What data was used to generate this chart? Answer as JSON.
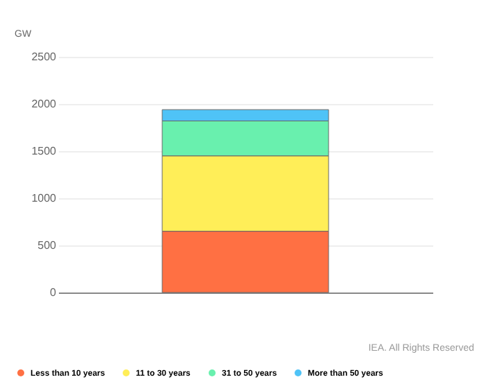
{
  "chart_data": {
    "type": "bar",
    "stacked": true,
    "ylabel": "GW",
    "categories": [
      null
    ],
    "series": [
      {
        "name": "Less than 10 years",
        "color": "#ff7043",
        "values": [
          650
        ]
      },
      {
        "name": "11 to 30 years",
        "color": "#ffee58",
        "values": [
          800
        ]
      },
      {
        "name": "31 to 50 years",
        "color": "#69f0ae",
        "values": [
          370
        ]
      },
      {
        "name": "More than 50 years",
        "color": "#4fc3f7",
        "values": [
          120
        ]
      }
    ],
    "ylim": [
      0,
      2500
    ],
    "yticks": [
      0,
      500,
      1000,
      1500,
      2000,
      2500
    ],
    "grid": "y",
    "legend": "bottom left",
    "annotations": [
      "IEA. All Rights Reserved"
    ]
  }
}
